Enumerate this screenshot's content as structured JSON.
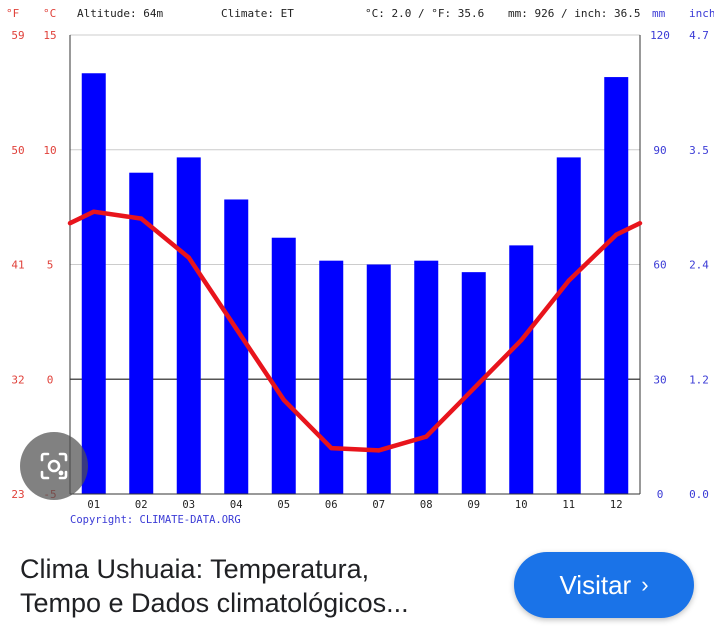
{
  "header": {
    "f_unit": "°F",
    "c_unit": "°C",
    "altitude": "Altitude: 64m",
    "climate": "Climate: ET",
    "temps": "°C: 2.0 / °F: 35.6",
    "precip": "mm: 926 / inch: 36.5",
    "mm_unit": "mm",
    "inch_unit": "inch"
  },
  "copyright": "Copyright: CLIMATE-DATA.ORG",
  "colors": {
    "bars": "#0000ff",
    "line": "#e8141c",
    "temp_axis": "#e0413a",
    "precip_axis": "#3b3bd6",
    "grid": "#cccccc",
    "zero_line": "#555555"
  },
  "chart_data": {
    "type": "bar",
    "categories": [
      "01",
      "02",
      "03",
      "04",
      "05",
      "06",
      "07",
      "08",
      "09",
      "10",
      "11",
      "12"
    ],
    "series": [
      {
        "axis": "precipitation_mm",
        "type": "bar",
        "values": [
          110,
          84,
          88,
          77,
          67,
          61,
          60,
          61,
          58,
          65,
          88,
          109
        ]
      },
      {
        "axis": "temperature_c",
        "type": "line",
        "values": [
          7.3,
          7.0,
          5.3,
          2.2,
          -0.9,
          -3.0,
          -3.1,
          -2.5,
          -0.4,
          1.7,
          4.3,
          6.3
        ]
      }
    ],
    "precip_ylim": [
      0,
      120
    ],
    "temp_ylim": [
      -5,
      15
    ],
    "temp_ticks_c": [
      -5,
      0,
      5,
      10,
      15
    ],
    "temp_ticks_f": [
      23,
      32,
      41,
      50,
      59
    ],
    "precip_ticks_mm": [
      0,
      30,
      60,
      90,
      120
    ],
    "precip_ticks_inch": [
      "0.0",
      "1.2",
      "2.4",
      "3.5",
      "4.7"
    ],
    "grid": true
  },
  "footer": {
    "title_line1": "Clima Ushuaia: Temperatura,",
    "title_line2": "Tempo e Dados climatológicos...",
    "visit_label": "Visitar",
    "visit_chevron": "›"
  },
  "lens_icon": "camera-lens-icon"
}
